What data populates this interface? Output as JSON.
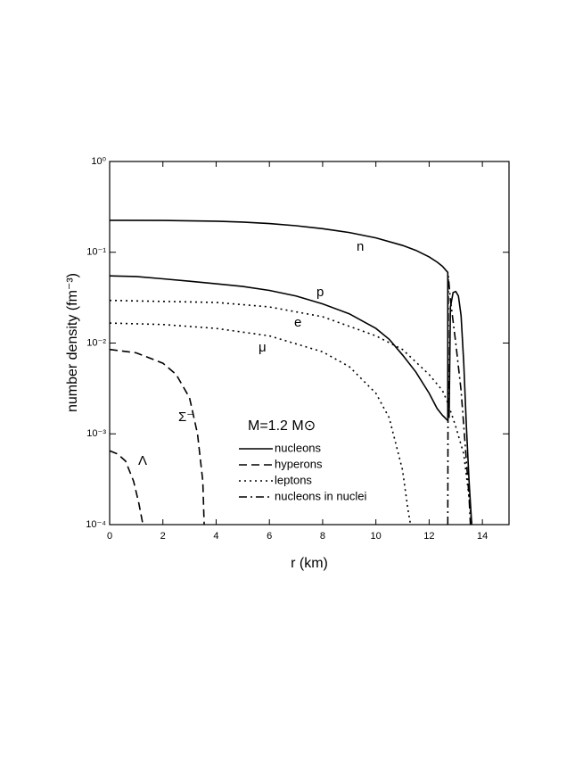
{
  "chart_data": {
    "type": "line",
    "x_label": "r (km)",
    "y_label": "number density (fm⁻³)",
    "annotation": "M=1.2 M⊙",
    "xlim": [
      0,
      15
    ],
    "xticks": [
      0,
      2,
      4,
      6,
      8,
      10,
      12,
      14
    ],
    "ylim": [
      0.0001,
      1
    ],
    "ylog": true,
    "yticks": [
      {
        "value": 0.0001,
        "label": "10⁻⁴"
      },
      {
        "value": 0.001,
        "label": "10⁻³"
      },
      {
        "value": 0.01,
        "label": "10⁻²"
      },
      {
        "value": 0.1,
        "label": "10⁻¹"
      },
      {
        "value": 1,
        "label": "10⁰"
      }
    ],
    "legend": "lower center",
    "series": [
      {
        "name": "nucleons",
        "color": "#000000",
        "dash": "solid",
        "curves": [
          {
            "label": "n",
            "x": [
              0,
              2,
              4,
              5,
              6,
              7,
              8,
              9,
              10,
              11,
              11.5,
              12,
              12.3,
              12.5,
              12.7,
              12.7
            ],
            "values": [
              0.225,
              0.224,
              0.22,
              0.215,
              0.207,
              0.196,
              0.182,
              0.165,
              0.144,
              0.119,
              0.105,
              0.089,
              0.078,
              0.07,
              0.06,
              0.0015
            ]
          },
          {
            "label": "p",
            "x": [
              0,
              1,
              2,
              3,
              4,
              5,
              6,
              7,
              8,
              9,
              10,
              10.5,
              11,
              11.5,
              12,
              12.3,
              12.5,
              12.7
            ],
            "values": [
              0.055,
              0.054,
              0.051,
              0.048,
              0.045,
              0.042,
              0.038,
              0.033,
              0.027,
              0.021,
              0.0145,
              0.011,
              0.0074,
              0.0048,
              0.0028,
              0.0019,
              0.0016,
              0.0014
            ]
          },
          {
            "x": [
              12.75,
              12.8,
              12.9,
              13.0,
              13.1,
              13.2,
              13.3,
              13.4,
              13.5,
              13.6
            ],
            "values": [
              0.0015,
              0.025,
              0.036,
              0.037,
              0.033,
              0.02,
              0.006,
              0.0012,
              0.0003,
              0.0001
            ]
          }
        ]
      },
      {
        "name": "hyperons",
        "color": "#000000",
        "dash": "dashed",
        "curves": [
          {
            "label": "Σ⁻",
            "x": [
              0,
              1,
              2,
              2.5,
              3,
              3.3,
              3.5,
              3.55
            ],
            "values": [
              0.0085,
              0.0078,
              0.006,
              0.0045,
              0.0025,
              0.001,
              0.0003,
              0.0001
            ]
          },
          {
            "label": "Λ",
            "x": [
              0,
              0.3,
              0.6,
              0.9,
              1.1,
              1.25
            ],
            "values": [
              0.00065,
              0.0006,
              0.0005,
              0.0003,
              0.00017,
              0.0001
            ]
          }
        ]
      },
      {
        "name": "leptons",
        "color": "#000000",
        "dash": "dotted",
        "curves": [
          {
            "label": "e",
            "x": [
              0,
              4,
              6,
              8,
              10,
              11,
              12,
              12.5,
              12.7,
              13,
              13.3,
              13.5,
              13.6
            ],
            "values": [
              0.0295,
              0.028,
              0.025,
              0.0195,
              0.012,
              0.0085,
              0.0045,
              0.003,
              0.0022,
              0.0012,
              0.0006,
              0.0002,
              0.0001
            ]
          },
          {
            "label": "μ",
            "x": [
              0,
              2,
              4,
              6,
              8,
              9,
              10,
              10.5,
              11,
              11.2,
              11.3
            ],
            "values": [
              0.0166,
              0.016,
              0.0145,
              0.012,
              0.008,
              0.0055,
              0.0028,
              0.0015,
              0.0004,
              0.00015,
              0.0001
            ]
          }
        ]
      },
      {
        "name": "nucleons in nuclei",
        "color": "#000000",
        "dash": "dashdot",
        "curves": [
          {
            "x": [
              12.7,
              12.72,
              12.8,
              13.0,
              13.2,
              13.4,
              13.5,
              13.55
            ],
            "values": [
              0.0001,
              0.055,
              0.03,
              0.01,
              0.003,
              0.0005,
              0.0002,
              0.0001
            ]
          }
        ]
      }
    ]
  }
}
